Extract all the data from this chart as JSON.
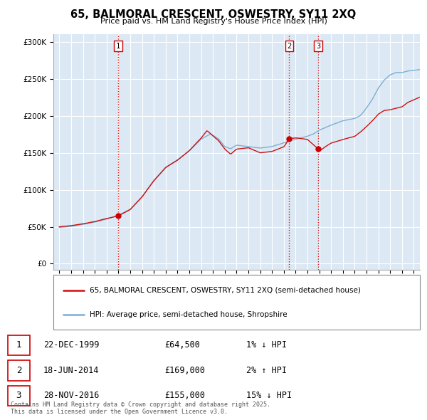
{
  "title": "65, BALMORAL CRESCENT, OSWESTRY, SY11 2XQ",
  "subtitle": "Price paid vs. HM Land Registry's House Price Index (HPI)",
  "yticks": [
    0,
    50000,
    100000,
    150000,
    200000,
    250000,
    300000
  ],
  "sales": [
    {
      "date_num": 1999.97,
      "price": 64500,
      "label": "1"
    },
    {
      "date_num": 2014.46,
      "price": 169000,
      "label": "2"
    },
    {
      "date_num": 2016.91,
      "price": 155000,
      "label": "3"
    }
  ],
  "vline_color": "#cc0000",
  "sale_dot_color": "#cc0000",
  "hpi_color": "#7bafd4",
  "house_color": "#cc1111",
  "legend_entries": [
    "65, BALMORAL CRESCENT, OSWESTRY, SY11 2XQ (semi-detached house)",
    "HPI: Average price, semi-detached house, Shropshire"
  ],
  "table_rows": [
    {
      "num": "1",
      "date": "22-DEC-1999",
      "price": "£64,500",
      "hpi": "1% ↓ HPI"
    },
    {
      "num": "2",
      "date": "18-JUN-2014",
      "price": "£169,000",
      "hpi": "2% ↑ HPI"
    },
    {
      "num": "3",
      "date": "28-NOV-2016",
      "price": "£155,000",
      "hpi": "15% ↓ HPI"
    }
  ],
  "footnote": "Contains HM Land Registry data © Crown copyright and database right 2025.\nThis data is licensed under the Open Government Licence v3.0.",
  "xlim": [
    1994.5,
    2025.5
  ],
  "ylim": [
    -8000,
    310000
  ],
  "chart_bg": "#dce9f5",
  "fig_bg": "#ffffff",
  "grid_color": "#ffffff"
}
